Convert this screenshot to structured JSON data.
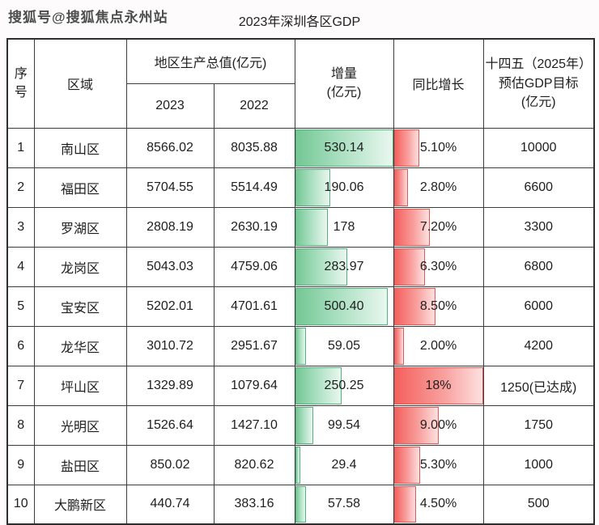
{
  "watermark": "搜狐号@搜狐焦点永州站",
  "table": {
    "headers": {
      "index": "序\n号",
      "district": "区域",
      "gdp_group": "地区生产总值(亿元)",
      "y2023": "2023",
      "y2022": "2022",
      "increment": "增量\n(亿元)",
      "growth": "同比增长",
      "target": "十四五（2025年）\n预估GDP目标\n(亿元)"
    }
  },
  "colors": {
    "green_bar_start": "#74c794",
    "green_bar_end": "#e9f7ef",
    "green_bar_border": "#54b37c",
    "red_bar_start": "#f4605d",
    "red_bar_end": "#fde1e0",
    "red_bar_border": "#de5a57"
  },
  "chart_data": {
    "type": "table",
    "title": "2023年深圳各区GDP",
    "columns": [
      "序号",
      "区域",
      "地区生产总值(亿元) 2023",
      "地区生产总值(亿元) 2022",
      "增量(亿元)",
      "同比增长",
      "十四五（2025年）预估GDP目标(亿元)"
    ],
    "bar_max": {
      "increment": 530.14,
      "growth_pct": 18
    },
    "rows": [
      {
        "no": "1",
        "district": "南山区",
        "gdp_2023": "8566.02",
        "gdp_2022": "8035.88",
        "increment": "530.14",
        "increment_value": 530.14,
        "growth": "5.10%",
        "growth_value": 5.1,
        "target": "10000"
      },
      {
        "no": "2",
        "district": "福田区",
        "gdp_2023": "5704.55",
        "gdp_2022": "5514.49",
        "increment": "190.06",
        "increment_value": 190.06,
        "growth": "2.80%",
        "growth_value": 2.8,
        "target": "6600"
      },
      {
        "no": "3",
        "district": "罗湖区",
        "gdp_2023": "2808.19",
        "gdp_2022": "2630.19",
        "increment": "178",
        "increment_value": 178.0,
        "growth": "7.20%",
        "growth_value": 7.2,
        "target": "3300"
      },
      {
        "no": "4",
        "district": "龙岗区",
        "gdp_2023": "5043.03",
        "gdp_2022": "4759.06",
        "increment": "283.97",
        "increment_value": 283.97,
        "growth": "6.30%",
        "growth_value": 6.3,
        "target": "6800"
      },
      {
        "no": "5",
        "district": "宝安区",
        "gdp_2023": "5202.01",
        "gdp_2022": "4701.61",
        "increment": "500.40",
        "increment_value": 500.4,
        "growth": "8.50%",
        "growth_value": 8.5,
        "target": "6000"
      },
      {
        "no": "6",
        "district": "龙华区",
        "gdp_2023": "3010.72",
        "gdp_2022": "2951.67",
        "increment": "59.05",
        "increment_value": 59.05,
        "growth": "2.00%",
        "growth_value": 2.0,
        "target": "4200"
      },
      {
        "no": "7",
        "district": "坪山区",
        "gdp_2023": "1329.89",
        "gdp_2022": "1079.64",
        "increment": "250.25",
        "increment_value": 250.25,
        "growth": "18%",
        "growth_value": 18.0,
        "target": "1250(已达成)"
      },
      {
        "no": "8",
        "district": "光明区",
        "gdp_2023": "1526.64",
        "gdp_2022": "1427.10",
        "increment": "99.54",
        "increment_value": 99.54,
        "growth": "9.00%",
        "growth_value": 9.0,
        "target": "1750"
      },
      {
        "no": "9",
        "district": "盐田区",
        "gdp_2023": "850.02",
        "gdp_2022": "820.62",
        "increment": "29.4",
        "increment_value": 29.4,
        "growth": "5.30%",
        "growth_value": 5.3,
        "target": "1000"
      },
      {
        "no": "10",
        "district": "大鹏新区",
        "gdp_2023": "440.74",
        "gdp_2022": "383.16",
        "increment": "57.58",
        "increment_value": 57.58,
        "growth": "4.50%",
        "growth_value": 4.5,
        "target": "500"
      }
    ]
  }
}
